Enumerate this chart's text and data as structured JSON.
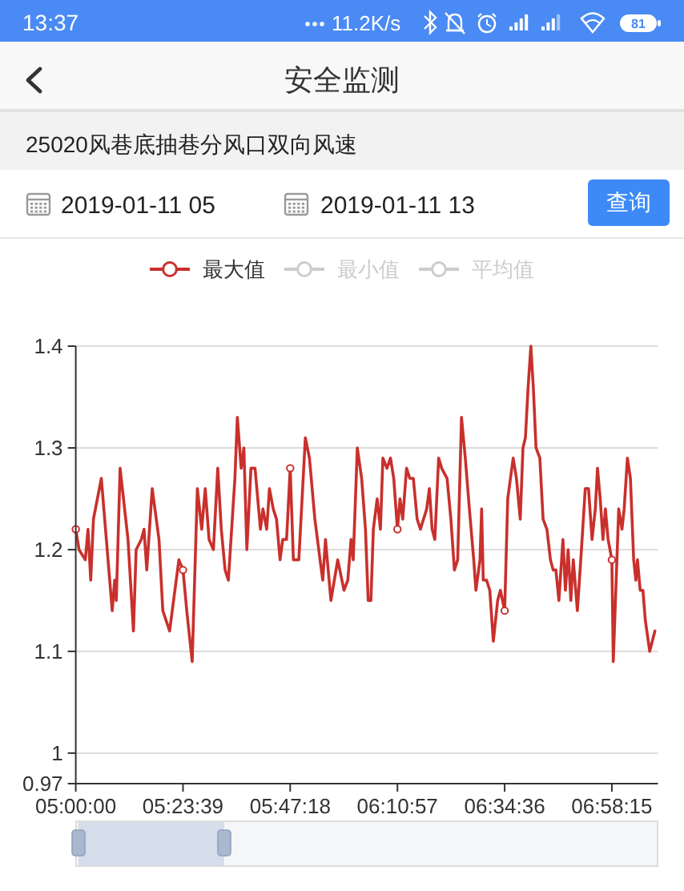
{
  "chart_data": {
    "type": "line",
    "title": "25020风巷底抽巷分风口双向风速",
    "annotations": [
      "13:37",
      "11.2K/s",
      "81",
      "安全监测",
      "2019-01-11 05",
      "2019-01-11 13",
      "查询"
    ],
    "x": [
      5,
      5.012,
      5.035,
      5.045,
      5.055,
      5.065,
      5.094,
      5.134,
      5.143,
      5.149,
      5.163,
      5.192,
      5.212,
      5.222,
      5.241,
      5.251,
      5.261,
      5.281,
      5.306,
      5.32,
      5.345,
      5.379,
      5.3942,
      5.408,
      5.428,
      5.447,
      5.463,
      5.476,
      5.49,
      5.506,
      5.522,
      5.535,
      5.549,
      5.561,
      5.585,
      5.594,
      5.608,
      5.618,
      5.629,
      5.644,
      5.659,
      5.679,
      5.688,
      5.702,
      5.712,
      5.726,
      5.738,
      5.751,
      5.761,
      5.775,
      5.7883,
      5.8,
      5.82,
      5.844,
      5.859,
      5.879,
      5.898,
      5.908,
      5.918,
      5.938,
      5.963,
      5.986,
      6.0,
      6.012,
      6.02,
      6.035,
      6.051,
      6.065,
      6.075,
      6.085,
      6.094,
      6.108,
      6.12,
      6.129,
      6.144,
      6.157,
      6.169,
      6.1825,
      6.192,
      6.202,
      6.216,
      6.228,
      6.241,
      6.255,
      6.267,
      6.29,
      6.3,
      6.31,
      6.32,
      6.334,
      6.345,
      6.365,
      6.379,
      6.392,
      6.404,
      6.418,
      6.432,
      6.447,
      6.463,
      6.471,
      6.486,
      6.492,
      6.498,
      6.51,
      6.522,
      6.535,
      6.551,
      6.561,
      6.5767,
      6.588,
      6.608,
      6.62,
      6.634,
      6.644,
      6.653,
      6.663,
      6.673,
      6.682,
      6.692,
      6.706,
      6.718,
      6.732,
      6.745,
      6.755,
      6.765,
      6.776,
      6.791,
      6.8,
      6.81,
      6.82,
      6.829,
      6.844,
      6.859,
      6.873,
      6.885,
      6.898,
      6.91,
      6.918,
      6.928,
      6.938,
      6.947,
      6.957,
      6.9708,
      6.976,
      6.996,
      7.008,
      7.016,
      7.028,
      7.039,
      7.051,
      7.059,
      7.065,
      7.075,
      7.085,
      7.094,
      7.11,
      7.129
    ],
    "series": [
      {
        "name": "最大值",
        "color": "#c9302c",
        "values": [
          1.22,
          1.2,
          1.19,
          1.22,
          1.17,
          1.23,
          1.27,
          1.14,
          1.17,
          1.15,
          1.28,
          1.21,
          1.12,
          1.2,
          1.21,
          1.22,
          1.18,
          1.26,
          1.21,
          1.14,
          1.12,
          1.19,
          1.18,
          1.14,
          1.09,
          1.26,
          1.22,
          1.26,
          1.21,
          1.2,
          1.28,
          1.22,
          1.18,
          1.17,
          1.27,
          1.33,
          1.28,
          1.3,
          1.2,
          1.28,
          1.28,
          1.22,
          1.24,
          1.22,
          1.26,
          1.24,
          1.23,
          1.19,
          1.21,
          1.21,
          1.28,
          1.19,
          1.19,
          1.31,
          1.29,
          1.23,
          1.19,
          1.17,
          1.21,
          1.15,
          1.19,
          1.16,
          1.17,
          1.21,
          1.19,
          1.3,
          1.27,
          1.22,
          1.15,
          1.15,
          1.22,
          1.25,
          1.22,
          1.29,
          1.28,
          1.29,
          1.27,
          1.22,
          1.25,
          1.23,
          1.28,
          1.27,
          1.27,
          1.23,
          1.22,
          1.24,
          1.26,
          1.22,
          1.21,
          1.29,
          1.28,
          1.27,
          1.23,
          1.18,
          1.19,
          1.33,
          1.29,
          1.24,
          1.19,
          1.16,
          1.19,
          1.24,
          1.17,
          1.17,
          1.16,
          1.11,
          1.15,
          1.16,
          1.14,
          1.25,
          1.29,
          1.27,
          1.23,
          1.3,
          1.31,
          1.36,
          1.4,
          1.36,
          1.3,
          1.29,
          1.23,
          1.22,
          1.19,
          1.18,
          1.18,
          1.15,
          1.21,
          1.16,
          1.2,
          1.15,
          1.19,
          1.14,
          1.2,
          1.26,
          1.26,
          1.21,
          1.24,
          1.28,
          1.25,
          1.21,
          1.24,
          1.21,
          1.19,
          1.09,
          1.24,
          1.22,
          1.24,
          1.29,
          1.27,
          1.19,
          1.17,
          1.19,
          1.16,
          1.16,
          1.13,
          1.1,
          1.12
        ]
      },
      {
        "name": "最小值",
        "color": "#cccccc",
        "values": [
          null,
          null,
          null,
          null,
          null,
          null,
          null,
          null,
          null,
          null,
          null,
          null,
          null,
          null,
          null,
          null,
          null,
          null,
          null,
          null,
          null,
          null,
          null,
          null,
          null,
          null,
          null,
          null,
          null,
          null,
          null,
          null,
          null,
          null,
          null,
          null,
          null,
          null,
          null,
          null,
          null,
          null,
          null,
          null,
          null,
          null,
          null,
          null,
          null,
          null,
          null,
          null,
          null,
          null,
          null,
          null,
          null,
          null,
          null,
          null,
          null,
          null,
          null,
          null,
          null,
          null,
          null,
          null,
          null,
          null,
          null,
          null,
          null,
          null,
          null,
          null,
          null,
          null,
          null,
          null,
          null,
          null,
          null,
          null,
          null,
          null,
          null,
          null,
          null,
          null,
          null,
          null,
          null,
          null,
          null,
          null,
          null,
          null,
          null,
          null,
          null,
          null,
          null,
          null,
          null,
          null,
          null,
          null,
          null,
          null,
          null,
          null,
          null,
          null,
          null,
          null,
          null,
          null,
          null,
          null,
          null,
          null,
          null,
          null,
          null,
          null,
          null,
          null,
          null,
          null,
          null,
          null,
          null,
          null,
          null,
          null,
          null,
          null,
          null,
          null,
          null,
          null,
          null,
          null,
          null,
          null,
          null,
          null,
          null,
          null,
          null,
          null,
          null,
          null,
          null,
          null,
          null
        ]
      },
      {
        "name": "平均值",
        "color": "#cccccc",
        "values": [
          null,
          null,
          null,
          null,
          null,
          null,
          null,
          null,
          null,
          null,
          null,
          null,
          null,
          null,
          null,
          null,
          null,
          null,
          null,
          null,
          null,
          null,
          null,
          null,
          null,
          null,
          null,
          null,
          null,
          null,
          null,
          null,
          null,
          null,
          null,
          null,
          null,
          null,
          null,
          null,
          null,
          null,
          null,
          null,
          null,
          null,
          null,
          null,
          null,
          null,
          null,
          null,
          null,
          null,
          null,
          null,
          null,
          null,
          null,
          null,
          null,
          null,
          null,
          null,
          null,
          null,
          null,
          null,
          null,
          null,
          null,
          null,
          null,
          null,
          null,
          null,
          null,
          null,
          null,
          null,
          null,
          null,
          null,
          null,
          null,
          null,
          null,
          null,
          null,
          null,
          null,
          null,
          null,
          null,
          null,
          null,
          null,
          null,
          null,
          null,
          null,
          null,
          null,
          null,
          null,
          null,
          null,
          null,
          null,
          null,
          null,
          null,
          null,
          null,
          null,
          null,
          null,
          null,
          null,
          null,
          null,
          null,
          null,
          null,
          null,
          null,
          null,
          null,
          null,
          null,
          null,
          null,
          null,
          null,
          null,
          null,
          null,
          null,
          null,
          null,
          null,
          null,
          null,
          null,
          null,
          null,
          null,
          null,
          null,
          null,
          null,
          null,
          null,
          null,
          null,
          null,
          null
        ]
      },
      {
        "type": "scatter",
        "color": "#c9302c",
        "marker": "circle",
        "x": [
          5,
          5.3942,
          5.7883,
          6.1825,
          6.5767,
          6.9708
        ],
        "values": [
          1.22,
          1.18,
          1.28,
          1.22,
          1.14,
          1.19
        ]
      }
    ],
    "xlim": [
      5,
      7.14
    ],
    "ylim": [
      0.97,
      1.4
    ],
    "xticks": [
      {
        "value": 5,
        "label": "05:00:00"
      },
      {
        "value": 5.3942,
        "label": "05:23:39"
      },
      {
        "value": 5.7883,
        "label": "05:47:18"
      },
      {
        "value": 6.1825,
        "label": "06:10:57"
      },
      {
        "value": 6.5767,
        "label": "06:34:36"
      },
      {
        "value": 6.9708,
        "label": "06:58:15"
      }
    ],
    "yticks": [
      0.97,
      1,
      1.1,
      1.2,
      1.3,
      1.4
    ],
    "grid": "y",
    "legend": "top"
  }
}
